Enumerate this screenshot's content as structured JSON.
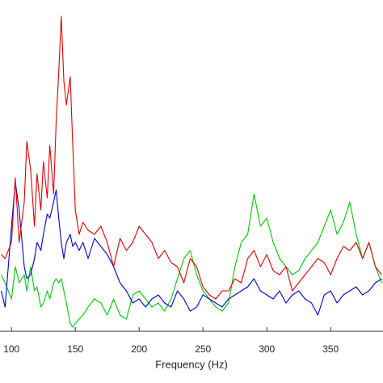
{
  "chart_data": {
    "type": "line",
    "xlabel": "Frequency (Hz)",
    "x": [
      92,
      95,
      100,
      103,
      106,
      110,
      112,
      115,
      118,
      120,
      123,
      125,
      128,
      130,
      133,
      135,
      137,
      139,
      141,
      143,
      146,
      148,
      150,
      153,
      156,
      160,
      165,
      170,
      175,
      180,
      185,
      190,
      195,
      200,
      205,
      210,
      215,
      220,
      225,
      230,
      235,
      240,
      245,
      250,
      255,
      260,
      265,
      270,
      275,
      280,
      285,
      290,
      295,
      300,
      305,
      310,
      315,
      320,
      325,
      330,
      335,
      340,
      345,
      350,
      355,
      360,
      365,
      370,
      375,
      380,
      385,
      390
    ],
    "series": [
      {
        "color": "#00c800",
        "values": [
          7,
          6,
          4,
          8,
          6,
          7,
          5,
          8,
          5,
          5.5,
          3,
          3.5,
          5,
          4,
          6,
          6.5,
          6,
          6.5,
          5,
          3.5,
          1,
          0.5,
          1,
          1.5,
          2,
          3,
          4,
          3.5,
          2,
          4,
          2,
          1.5,
          4.5,
          5,
          4,
          3,
          3.5,
          2.5,
          4,
          6.5,
          9,
          10,
          7,
          5,
          4,
          3,
          2.5,
          3.5,
          8,
          11,
          12,
          17,
          13,
          14,
          11,
          9,
          8,
          7,
          7.5,
          9,
          10,
          11,
          13,
          15,
          12,
          13.5,
          16,
          12,
          9,
          11,
          8,
          6
        ]
      },
      {
        "color": "#0000d0",
        "values": [
          5,
          3,
          13,
          18.5,
          15,
          8,
          6.5,
          7,
          9,
          11,
          10,
          12,
          14.5,
          14,
          16,
          17.5,
          14,
          11,
          9,
          11,
          12,
          10.5,
          11,
          10,
          11,
          9,
          11.5,
          10.5,
          9.5,
          8,
          6,
          5,
          3.5,
          4,
          3,
          4,
          4.5,
          3.5,
          3,
          5,
          4,
          2.5,
          3,
          4.5,
          4,
          3.5,
          3,
          4,
          4.5,
          5,
          5.5,
          6.5,
          5,
          4.5,
          4,
          5,
          3.5,
          4.5,
          5,
          4,
          3.5,
          2,
          4.5,
          5,
          3.5,
          4.5,
          5,
          5.5,
          4.5,
          5,
          6,
          6.5
        ]
      },
      {
        "color": "#e00000",
        "values": [
          9.5,
          9,
          11,
          19,
          11,
          16,
          23.5,
          20,
          13,
          19.5,
          15,
          21,
          16.5,
          23,
          17,
          26,
          32,
          39,
          31,
          28,
          31.5,
          23,
          15,
          12,
          13.5,
          12.5,
          12,
          13,
          11,
          8,
          11.5,
          10,
          11,
          13,
          12,
          11,
          9,
          10,
          8.5,
          8,
          6,
          9,
          8,
          5.5,
          4.5,
          4,
          5,
          5,
          6.5,
          6,
          9,
          10,
          8,
          9.5,
          7.5,
          7,
          8,
          5,
          6,
          7,
          8,
          9,
          8.5,
          7,
          9,
          10.5,
          10,
          11,
          9,
          11,
          8,
          7
        ]
      }
    ],
    "xlim": [
      91,
      391
    ],
    "ylim": [
      0,
      41
    ],
    "xticks": [
      100,
      150,
      200,
      250,
      300,
      350
    ],
    "grid": false
  }
}
